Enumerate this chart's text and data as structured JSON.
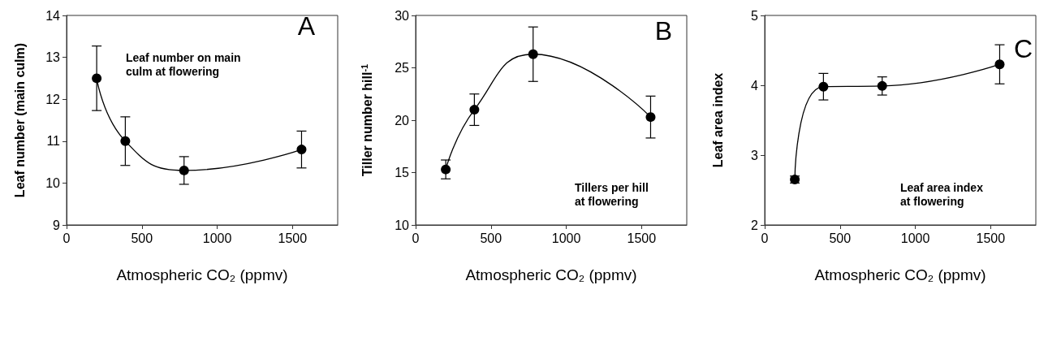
{
  "chart_data": [
    {
      "type": "line",
      "xlabel": "Atmospheric CO₂ (ppmv)",
      "ylabel": "Leaf number (main culm)",
      "annotations": [
        "A",
        "Leaf number on main\nculm at flowering"
      ],
      "x": [
        200,
        390,
        780,
        1560
      ],
      "series": [
        {
          "color": "#000000",
          "values": [
            12.5,
            11.0,
            10.3,
            10.8
          ],
          "errors": [
            0.77,
            0.58,
            0.33,
            0.44
          ]
        }
      ],
      "xlim": [
        0,
        1800
      ],
      "xticks": [
        0,
        500,
        1000,
        1500
      ],
      "ylim": [
        9,
        14
      ],
      "yticks": [
        9,
        10,
        11,
        12,
        13,
        14
      ],
      "marker": "circle",
      "line_style": "solid"
    },
    {
      "type": "line",
      "xlabel": "Atmospheric CO₂ (ppmv)",
      "ylabel": "Tiller number hill$^{-1}$",
      "annotations": [
        "B",
        "Tillers per hill\nat flowering"
      ],
      "x": [
        200,
        390,
        780,
        1560
      ],
      "series": [
        {
          "color": "#000000",
          "values": [
            15.3,
            21.0,
            26.3,
            20.3
          ],
          "errors": [
            0.9,
            1.5,
            2.6,
            2.0
          ]
        }
      ],
      "xlim": [
        0,
        1800
      ],
      "xticks": [
        0,
        500,
        1000,
        1500
      ],
      "ylim": [
        10,
        30
      ],
      "yticks": [
        10,
        15,
        20,
        25,
        30
      ],
      "marker": "circle",
      "line_style": "solid"
    },
    {
      "type": "line",
      "xlabel": "Atmospheric CO₂ (ppmv)",
      "ylabel": "Leaf area index",
      "annotations": [
        "C",
        "Leaf area index\nat flowering"
      ],
      "x": [
        200,
        390,
        780,
        1560
      ],
      "series": [
        {
          "color": "#000000",
          "values": [
            2.65,
            3.98,
            3.99,
            4.3
          ],
          "errors": [
            0.05,
            0.19,
            0.13,
            0.28
          ]
        }
      ],
      "xlim": [
        0,
        1800
      ],
      "xticks": [
        0,
        500,
        1000,
        1500
      ],
      "ylim": [
        2,
        5
      ],
      "yticks": [
        2,
        3,
        4,
        5
      ],
      "marker": "circle",
      "line_style": "solid"
    }
  ]
}
